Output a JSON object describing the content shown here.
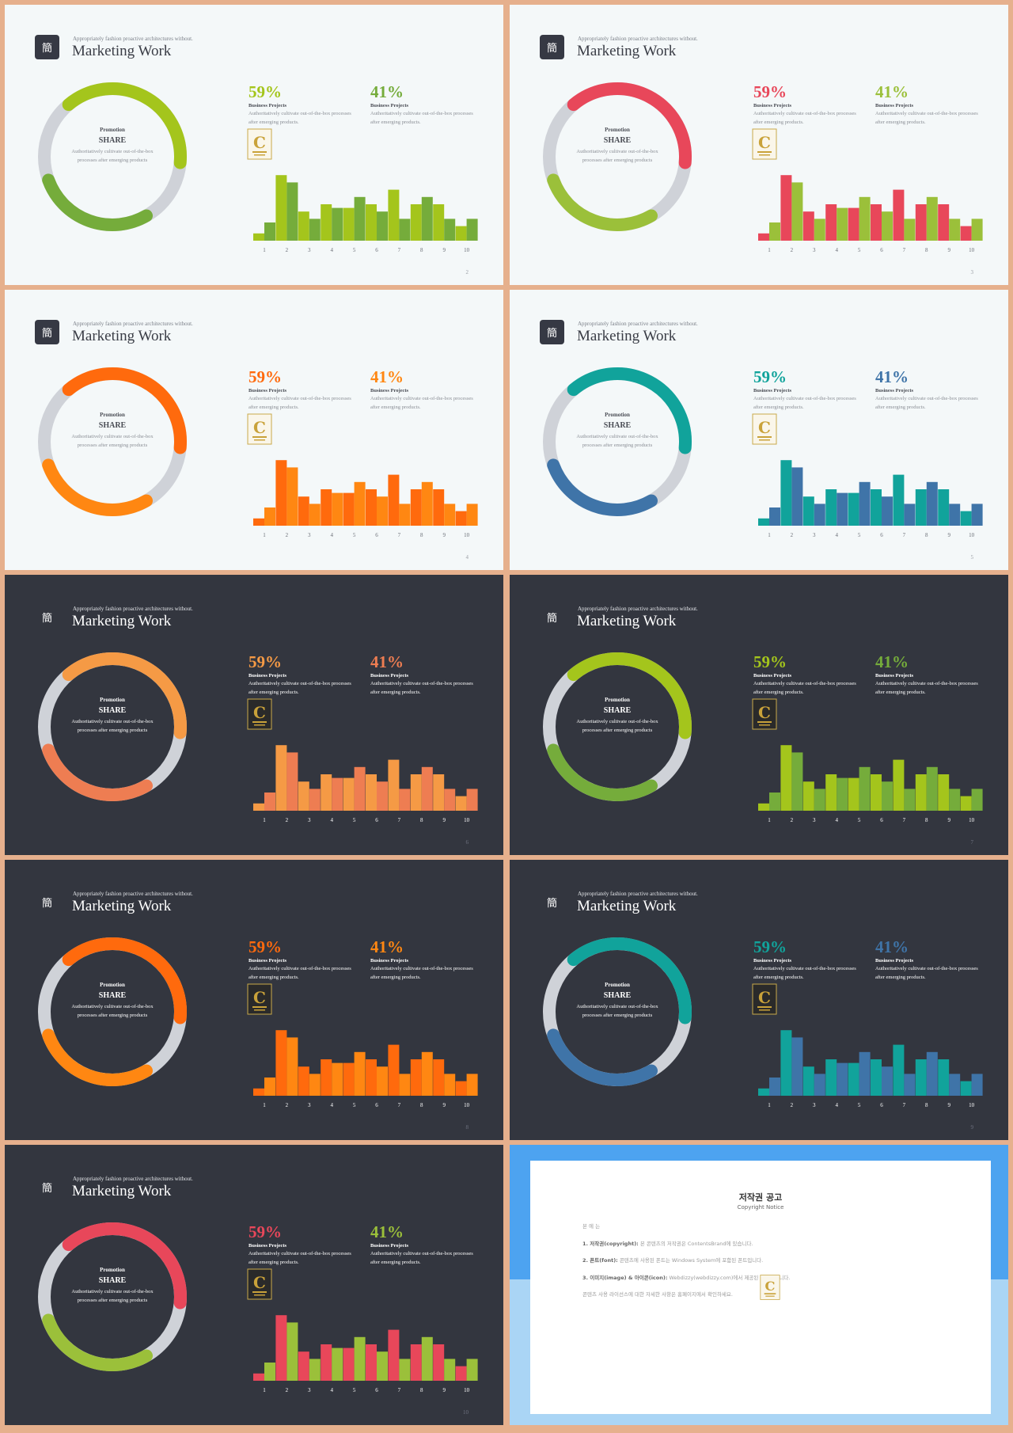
{
  "slides": [
    {
      "theme": "light",
      "page": "2",
      "logo": "簡",
      "subtitle": "Appropriately fashion proactive architectures without.",
      "title": "Marketing Work",
      "center": {
        "promotion": "Promotion",
        "share": "SHARE",
        "desc": "Authoritatively cultivate out-of-the-box processes after emerging products"
      },
      "stat1": {
        "value": "59%",
        "heading": "Business Projects",
        "desc": "Authoritatively cultivate out-of-the-box processes after emerging products."
      },
      "stat2": {
        "value": "41%",
        "heading": "Business Projects",
        "desc": "Authoritatively cultivate out-of-the-box processes after emerging products."
      },
      "colors": {
        "primary": "#a4c51c",
        "secondary": "#75ac3b",
        "stat1": "#a4c51c",
        "stat2": "#75ac3b"
      }
    },
    {
      "theme": "light",
      "page": "3",
      "logo": "簡",
      "subtitle": "Appropriately fashion proactive architectures without.",
      "title": "Marketing Work",
      "center": {
        "promotion": "Promotion",
        "share": "SHARE",
        "desc": "Authoritatively cultivate out-of-the-box processes after emerging products"
      },
      "stat1": {
        "value": "59%",
        "heading": "Business Projects",
        "desc": "Authoritatively cultivate out-of-the-box processes after emerging products."
      },
      "stat2": {
        "value": "41%",
        "heading": "Business Projects",
        "desc": "Authoritatively cultivate out-of-the-box processes after emerging products."
      },
      "colors": {
        "primary": "#e8475a",
        "secondary": "#9bc03a",
        "stat1": "#e8475a",
        "stat2": "#9bc03a"
      }
    },
    {
      "theme": "light",
      "page": "4",
      "logo": "簡",
      "subtitle": "Appropriately fashion proactive architectures without.",
      "title": "Marketing Work",
      "center": {
        "promotion": "Promotion",
        "share": "SHARE",
        "desc": "Authoritatively cultivate out-of-the-box processes after emerging products"
      },
      "stat1": {
        "value": "59%",
        "heading": "Business Projects",
        "desc": "Authoritatively cultivate out-of-the-box processes after emerging products."
      },
      "stat2": {
        "value": "41%",
        "heading": "Business Projects",
        "desc": "Authoritatively cultivate out-of-the-box processes after emerging products."
      },
      "colors": {
        "primary": "#ff6a0d",
        "secondary": "#ff8712",
        "stat1": "#ff6a0d",
        "stat2": "#ff8712"
      }
    },
    {
      "theme": "light",
      "page": "5",
      "logo": "簡",
      "subtitle": "Appropriately fashion proactive architectures without.",
      "title": "Marketing Work",
      "center": {
        "promotion": "Promotion",
        "share": "SHARE",
        "desc": "Authoritatively cultivate out-of-the-box processes after emerging products"
      },
      "stat1": {
        "value": "59%",
        "heading": "Business Projects",
        "desc": "Authoritatively cultivate out-of-the-box processes after emerging products."
      },
      "stat2": {
        "value": "41%",
        "heading": "Business Projects",
        "desc": "Authoritatively cultivate out-of-the-box processes after emerging products."
      },
      "colors": {
        "primary": "#11a39b",
        "secondary": "#3f74a8",
        "stat1": "#11a39b",
        "stat2": "#3f74a8"
      }
    },
    {
      "theme": "dark",
      "page": "6",
      "logo": "簡",
      "subtitle": "Appropriately fashion proactive architectures without.",
      "title": "Marketing Work",
      "center": {
        "promotion": "Promotion",
        "share": "SHARE",
        "desc": "Authoritatively cultivate out-of-the-box processes after emerging products"
      },
      "stat1": {
        "value": "59%",
        "heading": "Business Projects",
        "desc": "Authoritatively cultivate out-of-the-box processes after emerging products."
      },
      "stat2": {
        "value": "41%",
        "heading": "Business Projects",
        "desc": "Authoritatively cultivate out-of-the-box processes after emerging products."
      },
      "colors": {
        "primary": "#f59a45",
        "secondary": "#ee7d52",
        "stat1": "#f59a45",
        "stat2": "#ee7d52"
      }
    },
    {
      "theme": "dark",
      "page": "7",
      "logo": "簡",
      "subtitle": "Appropriately fashion proactive architectures without.",
      "title": "Marketing Work",
      "center": {
        "promotion": "Promotion",
        "share": "SHARE",
        "desc": "Authoritatively cultivate out-of-the-box processes after emerging products"
      },
      "stat1": {
        "value": "59%",
        "heading": "Business Projects",
        "desc": "Authoritatively cultivate out-of-the-box processes after emerging products."
      },
      "stat2": {
        "value": "41%",
        "heading": "Business Projects",
        "desc": "Authoritatively cultivate out-of-the-box processes after emerging products."
      },
      "colors": {
        "primary": "#a4c51c",
        "secondary": "#75ac3b",
        "stat1": "#a4c51c",
        "stat2": "#75ac3b"
      }
    },
    {
      "theme": "dark",
      "page": "8",
      "logo": "簡",
      "subtitle": "Appropriately fashion proactive architectures without.",
      "title": "Marketing Work",
      "center": {
        "promotion": "Promotion",
        "share": "SHARE",
        "desc": "Authoritatively cultivate out-of-the-box processes after emerging products"
      },
      "stat1": {
        "value": "59%",
        "heading": "Business Projects",
        "desc": "Authoritatively cultivate out-of-the-box processes after emerging products."
      },
      "stat2": {
        "value": "41%",
        "heading": "Business Projects",
        "desc": "Authoritatively cultivate out-of-the-box processes after emerging products."
      },
      "colors": {
        "primary": "#ff6a0d",
        "secondary": "#ff8712",
        "stat1": "#ff6a0d",
        "stat2": "#ff8712"
      }
    },
    {
      "theme": "dark",
      "page": "9",
      "logo": "簡",
      "subtitle": "Appropriately fashion proactive architectures without.",
      "title": "Marketing Work",
      "center": {
        "promotion": "Promotion",
        "share": "SHARE",
        "desc": "Authoritatively cultivate out-of-the-box processes after emerging products"
      },
      "stat1": {
        "value": "59%",
        "heading": "Business Projects",
        "desc": "Authoritatively cultivate out-of-the-box processes after emerging products."
      },
      "stat2": {
        "value": "41%",
        "heading": "Business Projects",
        "desc": "Authoritatively cultivate out-of-the-box processes after emerging products."
      },
      "colors": {
        "primary": "#11a39b",
        "secondary": "#3f74a8",
        "stat1": "#11a39b",
        "stat2": "#3f74a8"
      }
    },
    {
      "theme": "dark",
      "page": "10",
      "logo": "簡",
      "subtitle": "Appropriately fashion proactive architectures without.",
      "title": "Marketing Work",
      "center": {
        "promotion": "Promotion",
        "share": "SHARE",
        "desc": "Authoritatively cultivate out-of-the-box processes after emerging products"
      },
      "stat1": {
        "value": "59%",
        "heading": "Business Projects",
        "desc": "Authoritatively cultivate out-of-the-box processes after emerging products."
      },
      "stat2": {
        "value": "41%",
        "heading": "Business Projects",
        "desc": "Authoritatively cultivate out-of-the-box processes after emerging products."
      },
      "colors": {
        "primary": "#e8475a",
        "secondary": "#9bc03a",
        "stat1": "#e8475a",
        "stat2": "#9bc03a"
      }
    }
  ],
  "copyright": {
    "title": "저작권 공고",
    "subtitle": "Copyright Notice",
    "intro": "  본  에  는 ",
    "sections": [
      {
        "heading": "1. 저작권(copyright):",
        "text": "본 콘텐츠의 저작권은 ContentsBrand에 있습니다."
      },
      {
        "heading": "2. 폰트(font):",
        "text": "콘텐츠에 사용된 폰트는 Windows System에 포함된 폰트입니다."
      },
      {
        "heading": "3. 이미지(image) & 아이콘(icon):",
        "text": "Webdizzy(webdizzy.com)에서 제공된 이미지입니다."
      }
    ],
    "footer": "콘텐츠 사용 라이선스에 대한 자세한 사항은 홈페이지에서 확인하세요."
  },
  "chart_data": {
    "type": "bar",
    "categories": [
      "1",
      "2",
      "3",
      "4",
      "5",
      "6",
      "7",
      "8",
      "9",
      "10"
    ],
    "series": [
      {
        "values": [
          1,
          9,
          4,
          5,
          4.5,
          5,
          7,
          5,
          5,
          2
        ]
      },
      {
        "values": [
          2.5,
          8,
          3,
          4.5,
          6,
          4,
          3,
          6,
          3,
          3
        ]
      }
    ],
    "donut": {
      "primary_share": 0.25,
      "secondary_share": 0.2
    }
  }
}
